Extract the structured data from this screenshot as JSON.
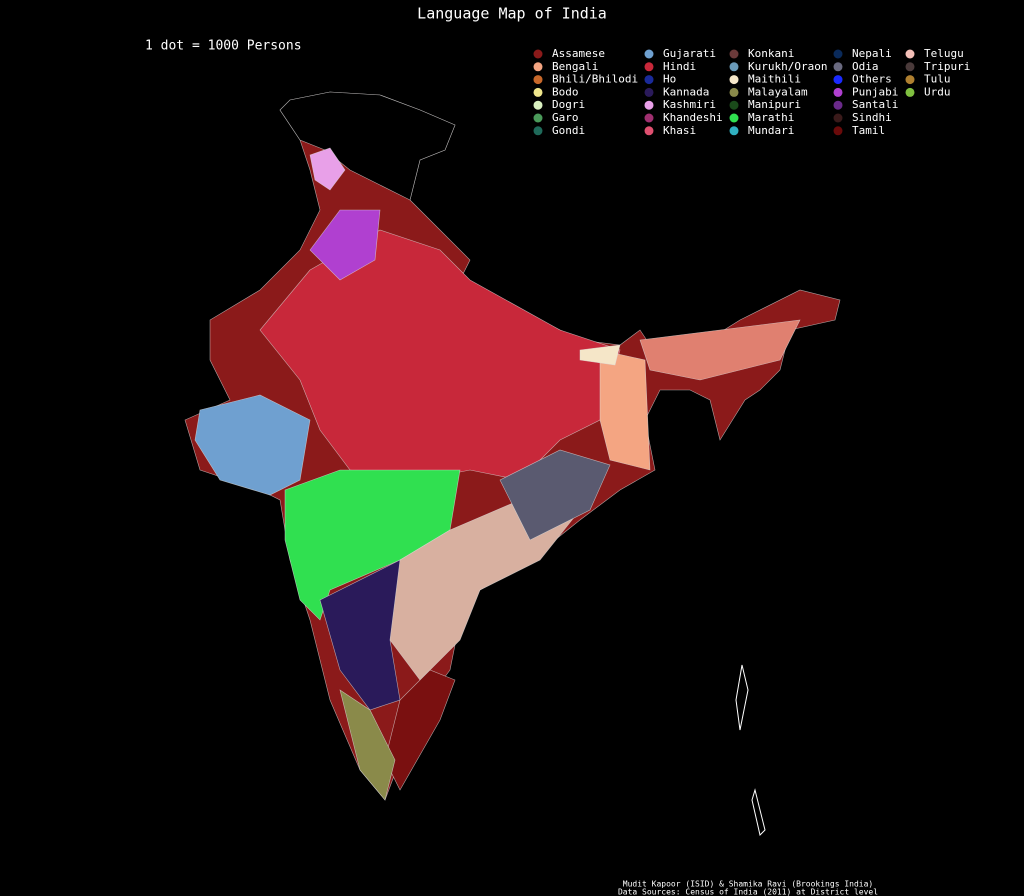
{
  "title": "Language Map of India",
  "subtitle": "1 dot = 1000 Persons",
  "legend": [
    {
      "name": "Assamese",
      "color": "#8b1a1a"
    },
    {
      "name": "Bengali",
      "color": "#f4a582"
    },
    {
      "name": "Bhili/Bhilodi",
      "color": "#c8682a"
    },
    {
      "name": "Bodo",
      "color": "#f0e68c"
    },
    {
      "name": "Dogri",
      "color": "#d9f0c0"
    },
    {
      "name": "Garo",
      "color": "#4a9a5a"
    },
    {
      "name": "Gondi",
      "color": "#1f6a5a"
    },
    {
      "name": "Gujarati",
      "color": "#6fa0d0"
    },
    {
      "name": "Hindi",
      "color": "#c8283a"
    },
    {
      "name": "Ho",
      "color": "#1a2a9a"
    },
    {
      "name": "Kannada",
      "color": "#2a1a5a"
    },
    {
      "name": "Kashmiri",
      "color": "#e8a0e8"
    },
    {
      "name": "Khandeshi",
      "color": "#a03070"
    },
    {
      "name": "Khasi",
      "color": "#e05070"
    },
    {
      "name": "Konkani",
      "color": "#6a3a3a"
    },
    {
      "name": "Kurukh/Oraon",
      "color": "#6a9ab8"
    },
    {
      "name": "Maithili",
      "color": "#f5e6c8"
    },
    {
      "name": "Malayalam",
      "color": "#8a8a4a"
    },
    {
      "name": "Manipuri",
      "color": "#1a4a1a"
    },
    {
      "name": "Marathi",
      "color": "#30e050"
    },
    {
      "name": "Mundari",
      "color": "#30b0c0"
    },
    {
      "name": "Nepali",
      "color": "#0a2a5a"
    },
    {
      "name": "Odia",
      "color": "#6a6a80"
    },
    {
      "name": "Others",
      "color": "#1a2aff"
    },
    {
      "name": "Punjabi",
      "color": "#b040d0"
    },
    {
      "name": "Santali",
      "color": "#6a2a8a"
    },
    {
      "name": "Sindhi",
      "color": "#3a1a1a"
    },
    {
      "name": "Tamil",
      "color": "#6a0a0a"
    },
    {
      "name": "Telugu",
      "color": "#f4c0b8"
    },
    {
      "name": "Tripuri",
      "color": "#4a3a3a"
    },
    {
      "name": "Tulu",
      "color": "#b08030"
    },
    {
      "name": "Urdu",
      "color": "#80c040"
    }
  ],
  "credits": [
    "Mudit Kapoor (ISID) & Shamika Ravi (Brookings India)",
    "Data Sources: Census of India (2011) at District level"
  ]
}
